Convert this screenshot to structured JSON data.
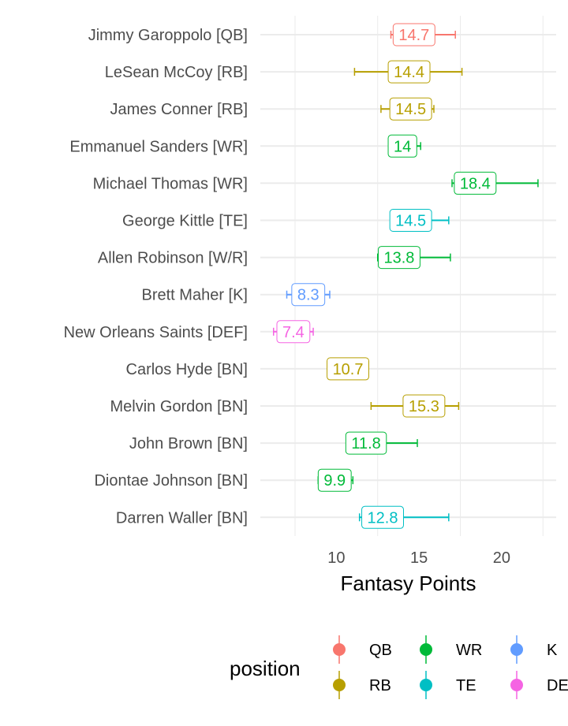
{
  "chart_data": {
    "type": "errorbar",
    "xlabel": "Fantasy Points",
    "xlim": [
      5.4,
      23.3
    ],
    "xticks": [
      10,
      15,
      20
    ],
    "grid": true,
    "legend": {
      "title": "position",
      "placement": "bottom",
      "entries": [
        {
          "key": "QB",
          "label": "QB",
          "color": "#F8766D"
        },
        {
          "key": "RB",
          "label": "RB",
          "color": "#B79F00"
        },
        {
          "key": "WR",
          "label": "WR",
          "color": "#00BA38"
        },
        {
          "key": "TE",
          "label": "TE",
          "color": "#00BFC4"
        },
        {
          "key": "K",
          "label": "K",
          "color": "#619CFF"
        },
        {
          "key": "DEF",
          "label": "DEF",
          "color": "#F564E3"
        }
      ]
    },
    "players": [
      {
        "name": "Jimmy Garoppolo [QB]",
        "position": "QB",
        "value": 14.7,
        "label": "14.7",
        "low": 13.3,
        "high": 17.2
      },
      {
        "name": "LeSean McCoy [RB]",
        "position": "RB",
        "value": 14.4,
        "label": "14.4",
        "low": 11.1,
        "high": 17.6
      },
      {
        "name": "James Conner [RB]",
        "position": "RB",
        "value": 14.5,
        "label": "14.5",
        "low": 12.7,
        "high": 15.9
      },
      {
        "name": "Emmanuel Sanders [WR]",
        "position": "WR",
        "value": 14.0,
        "label": "14",
        "low": 13.2,
        "high": 15.1
      },
      {
        "name": "Michael Thomas [WR]",
        "position": "WR",
        "value": 18.4,
        "label": "18.4",
        "low": 17.0,
        "high": 22.2
      },
      {
        "name": "George Kittle [TE]",
        "position": "TE",
        "value": 14.5,
        "label": "14.5",
        "low": 13.4,
        "high": 16.8
      },
      {
        "name": "Allen Robinson [W/R]",
        "position": "WR",
        "value": 13.8,
        "label": "13.8",
        "low": 12.5,
        "high": 16.9
      },
      {
        "name": "Brett Maher [K]",
        "position": "K",
        "value": 8.3,
        "label": "8.3",
        "low": 7.0,
        "high": 9.6
      },
      {
        "name": "New Orleans Saints [DEF]",
        "position": "DEF",
        "value": 7.4,
        "label": "7.4",
        "low": 6.2,
        "high": 8.6
      },
      {
        "name": "Carlos Hyde [BN]",
        "position": "RB",
        "value": 10.7,
        "label": "10.7",
        "low": 9.5,
        "high": 11.8
      },
      {
        "name": "Melvin Gordon [BN]",
        "position": "RB",
        "value": 15.3,
        "label": "15.3",
        "low": 12.1,
        "high": 17.4
      },
      {
        "name": "John Brown [BN]",
        "position": "WR",
        "value": 11.8,
        "label": "11.8",
        "low": 10.6,
        "high": 14.9
      },
      {
        "name": "Diontae Johnson [BN]",
        "position": "WR",
        "value": 9.9,
        "label": "9.9",
        "low": 8.9,
        "high": 11.0
      },
      {
        "name": "Darren Waller [BN]",
        "position": "TE",
        "value": 12.8,
        "label": "12.8",
        "low": 11.4,
        "high": 16.8
      }
    ]
  }
}
